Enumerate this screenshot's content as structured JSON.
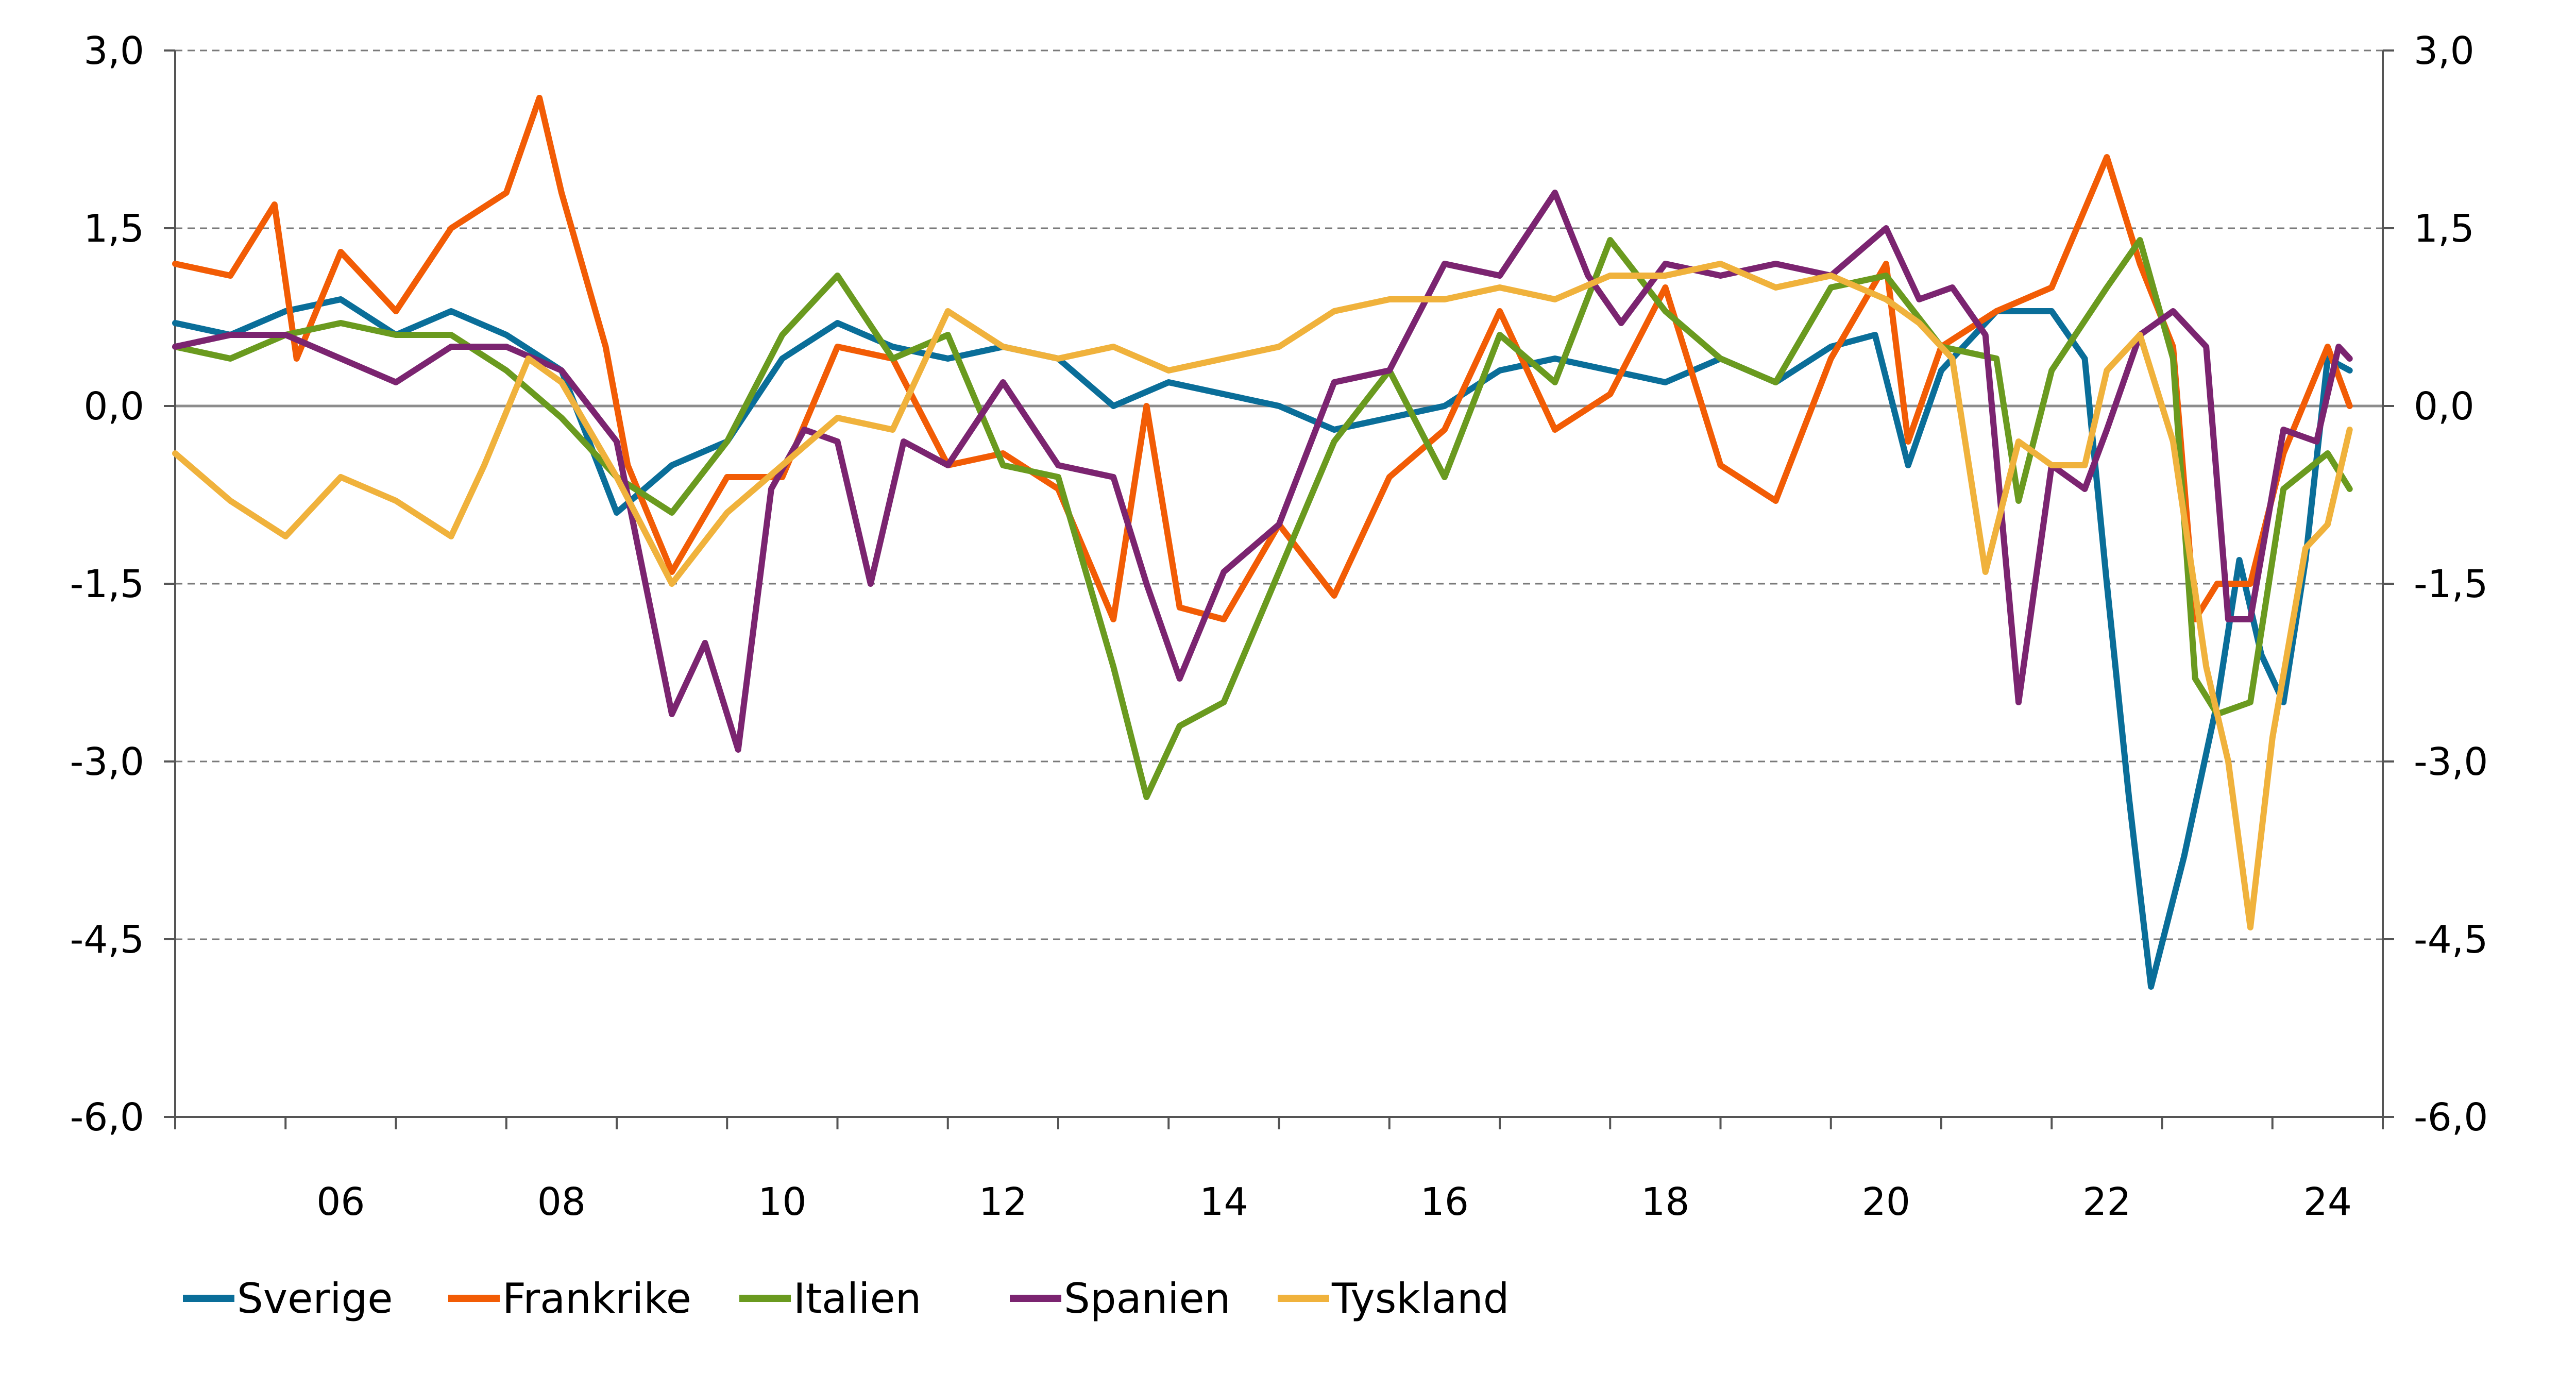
{
  "chart_data": {
    "type": "line",
    "title": "",
    "xlabel": "",
    "ylabel": "",
    "ylim": [
      -6.0,
      3.0
    ],
    "y_ticks": [
      "3,0",
      "1,5",
      "0,0",
      "-1,5",
      "-3,0",
      "-4,5",
      "-6,0"
    ],
    "y_tick_values": [
      3.0,
      1.5,
      0.0,
      -1.5,
      -3.0,
      -4.5,
      -6.0
    ],
    "xlim": [
      2004.5,
      2024.5
    ],
    "x_ticks": [
      "06",
      "08",
      "10",
      "12",
      "14",
      "16",
      "18",
      "20",
      "22",
      "24"
    ],
    "x_tick_values": [
      2006,
      2008,
      2010,
      2012,
      2014,
      2016,
      2018,
      2020,
      2022,
      2024
    ],
    "grid": "horizontal dashed",
    "dual_y_axis": true,
    "legend_position": "bottom-left",
    "series": [
      {
        "name": "Sverige",
        "color": "#0a6e99",
        "points": [
          [
            2004.5,
            0.7
          ],
          [
            2005.0,
            0.6
          ],
          [
            2005.5,
            0.8
          ],
          [
            2006.0,
            0.9
          ],
          [
            2006.5,
            0.6
          ],
          [
            2007.0,
            0.8
          ],
          [
            2007.5,
            0.6
          ],
          [
            2008.0,
            0.3
          ],
          [
            2008.5,
            -0.9
          ],
          [
            2009.0,
            -0.5
          ],
          [
            2009.5,
            -0.3
          ],
          [
            2010.0,
            0.4
          ],
          [
            2010.5,
            0.7
          ],
          [
            2011.0,
            0.5
          ],
          [
            2011.5,
            0.4
          ],
          [
            2012.0,
            0.5
          ],
          [
            2012.5,
            0.4
          ],
          [
            2013.0,
            0.0
          ],
          [
            2013.5,
            0.2
          ],
          [
            2014.0,
            0.1
          ],
          [
            2014.5,
            0.0
          ],
          [
            2015.0,
            -0.2
          ],
          [
            2015.5,
            -0.1
          ],
          [
            2016.0,
            0.0
          ],
          [
            2016.5,
            0.3
          ],
          [
            2017.0,
            0.4
          ],
          [
            2017.5,
            0.3
          ],
          [
            2018.0,
            0.2
          ],
          [
            2018.5,
            0.4
          ],
          [
            2019.0,
            0.2
          ],
          [
            2019.5,
            0.5
          ],
          [
            2019.9,
            0.6
          ],
          [
            2020.2,
            -0.5
          ],
          [
            2020.5,
            0.3
          ],
          [
            2021.0,
            0.8
          ],
          [
            2021.5,
            0.8
          ],
          [
            2021.8,
            0.4
          ],
          [
            2022.0,
            -1.5
          ],
          [
            2022.2,
            -3.3
          ],
          [
            2022.4,
            -4.9
          ],
          [
            2022.7,
            -3.8
          ],
          [
            2023.0,
            -2.5
          ],
          [
            2023.2,
            -1.3
          ],
          [
            2023.4,
            -2.1
          ],
          [
            2023.6,
            -2.5
          ],
          [
            2023.8,
            -1.3
          ],
          [
            2024.0,
            0.4
          ],
          [
            2024.2,
            0.3
          ]
        ]
      },
      {
        "name": "Frankrike",
        "color": "#f25c05",
        "points": [
          [
            2004.5,
            1.2
          ],
          [
            2005.0,
            1.1
          ],
          [
            2005.4,
            1.7
          ],
          [
            2005.6,
            0.4
          ],
          [
            2006.0,
            1.3
          ],
          [
            2006.5,
            0.8
          ],
          [
            2007.0,
            1.5
          ],
          [
            2007.5,
            1.8
          ],
          [
            2007.8,
            2.6
          ],
          [
            2008.0,
            1.8
          ],
          [
            2008.4,
            0.5
          ],
          [
            2008.6,
            -0.5
          ],
          [
            2009.0,
            -1.4
          ],
          [
            2009.5,
            -0.6
          ],
          [
            2010.0,
            -0.6
          ],
          [
            2010.5,
            0.5
          ],
          [
            2011.0,
            0.4
          ],
          [
            2011.5,
            -0.5
          ],
          [
            2012.0,
            -0.4
          ],
          [
            2012.5,
            -0.7
          ],
          [
            2013.0,
            -1.8
          ],
          [
            2013.3,
            0.0
          ],
          [
            2013.6,
            -1.7
          ],
          [
            2014.0,
            -1.8
          ],
          [
            2014.5,
            -1.0
          ],
          [
            2015.0,
            -1.6
          ],
          [
            2015.5,
            -0.6
          ],
          [
            2016.0,
            -0.2
          ],
          [
            2016.5,
            0.8
          ],
          [
            2017.0,
            -0.2
          ],
          [
            2017.5,
            0.1
          ],
          [
            2018.0,
            1.0
          ],
          [
            2018.5,
            -0.5
          ],
          [
            2019.0,
            -0.8
          ],
          [
            2019.5,
            0.4
          ],
          [
            2020.0,
            1.2
          ],
          [
            2020.2,
            -0.3
          ],
          [
            2020.5,
            0.5
          ],
          [
            2021.0,
            0.8
          ],
          [
            2021.5,
            1.0
          ],
          [
            2022.0,
            2.1
          ],
          [
            2022.3,
            1.2
          ],
          [
            2022.6,
            0.5
          ],
          [
            2022.8,
            -1.8
          ],
          [
            2023.0,
            -1.5
          ],
          [
            2023.3,
            -1.5
          ],
          [
            2023.6,
            -0.4
          ],
          [
            2024.0,
            0.5
          ],
          [
            2024.2,
            0.0
          ]
        ]
      },
      {
        "name": "Italien",
        "color": "#6a9a1f",
        "points": [
          [
            2004.5,
            0.5
          ],
          [
            2005.0,
            0.4
          ],
          [
            2005.5,
            0.6
          ],
          [
            2006.0,
            0.7
          ],
          [
            2006.5,
            0.6
          ],
          [
            2007.0,
            0.6
          ],
          [
            2007.5,
            0.3
          ],
          [
            2008.0,
            -0.1
          ],
          [
            2008.5,
            -0.6
          ],
          [
            2009.0,
            -0.9
          ],
          [
            2009.5,
            -0.3
          ],
          [
            2010.0,
            0.6
          ],
          [
            2010.5,
            1.1
          ],
          [
            2011.0,
            0.4
          ],
          [
            2011.5,
            0.6
          ],
          [
            2012.0,
            -0.5
          ],
          [
            2012.5,
            -0.6
          ],
          [
            2013.0,
            -2.2
          ],
          [
            2013.3,
            -3.3
          ],
          [
            2013.6,
            -2.7
          ],
          [
            2014.0,
            -2.5
          ],
          [
            2014.5,
            -1.4
          ],
          [
            2015.0,
            -0.3
          ],
          [
            2015.5,
            0.3
          ],
          [
            2016.0,
            -0.6
          ],
          [
            2016.5,
            0.6
          ],
          [
            2017.0,
            0.2
          ],
          [
            2017.5,
            1.4
          ],
          [
            2018.0,
            0.8
          ],
          [
            2018.5,
            0.4
          ],
          [
            2019.0,
            0.2
          ],
          [
            2019.5,
            1.0
          ],
          [
            2020.0,
            1.1
          ],
          [
            2020.5,
            0.5
          ],
          [
            2021.0,
            0.4
          ],
          [
            2021.2,
            -0.8
          ],
          [
            2021.5,
            0.3
          ],
          [
            2022.0,
            1.0
          ],
          [
            2022.3,
            1.4
          ],
          [
            2022.6,
            0.4
          ],
          [
            2022.8,
            -2.3
          ],
          [
            2023.0,
            -2.6
          ],
          [
            2023.3,
            -2.5
          ],
          [
            2023.6,
            -0.7
          ],
          [
            2024.0,
            -0.4
          ],
          [
            2024.2,
            -0.7
          ]
        ]
      },
      {
        "name": "Spanien",
        "color": "#7b2470",
        "points": [
          [
            2004.5,
            0.5
          ],
          [
            2005.0,
            0.6
          ],
          [
            2005.5,
            0.6
          ],
          [
            2006.0,
            0.4
          ],
          [
            2006.5,
            0.2
          ],
          [
            2007.0,
            0.5
          ],
          [
            2007.5,
            0.5
          ],
          [
            2008.0,
            0.3
          ],
          [
            2008.5,
            -0.3
          ],
          [
            2009.0,
            -2.6
          ],
          [
            2009.3,
            -2.0
          ],
          [
            2009.6,
            -2.9
          ],
          [
            2009.9,
            -0.7
          ],
          [
            2010.2,
            -0.2
          ],
          [
            2010.5,
            -0.3
          ],
          [
            2010.8,
            -1.5
          ],
          [
            2011.1,
            -0.3
          ],
          [
            2011.5,
            -0.5
          ],
          [
            2012.0,
            0.2
          ],
          [
            2012.5,
            -0.5
          ],
          [
            2013.0,
            -0.6
          ],
          [
            2013.3,
            -1.5
          ],
          [
            2013.6,
            -2.3
          ],
          [
            2014.0,
            -1.4
          ],
          [
            2014.5,
            -1.0
          ],
          [
            2015.0,
            0.2
          ],
          [
            2015.5,
            0.3
          ],
          [
            2016.0,
            1.2
          ],
          [
            2016.5,
            1.1
          ],
          [
            2017.0,
            1.8
          ],
          [
            2017.3,
            1.1
          ],
          [
            2017.6,
            0.7
          ],
          [
            2018.0,
            1.2
          ],
          [
            2018.5,
            1.1
          ],
          [
            2019.0,
            1.2
          ],
          [
            2019.5,
            1.1
          ],
          [
            2020.0,
            1.5
          ],
          [
            2020.3,
            0.9
          ],
          [
            2020.6,
            1.0
          ],
          [
            2020.9,
            0.6
          ],
          [
            2021.2,
            -2.5
          ],
          [
            2021.5,
            -0.5
          ],
          [
            2021.8,
            -0.7
          ],
          [
            2022.0,
            -0.2
          ],
          [
            2022.3,
            0.6
          ],
          [
            2022.6,
            0.8
          ],
          [
            2022.9,
            0.5
          ],
          [
            2023.1,
            -1.8
          ],
          [
            2023.3,
            -1.8
          ],
          [
            2023.6,
            -0.2
          ],
          [
            2023.9,
            -0.3
          ],
          [
            2024.1,
            0.5
          ],
          [
            2024.2,
            0.4
          ]
        ]
      },
      {
        "name": "Tyskland",
        "color": "#f0b23c",
        "points": [
          [
            2004.5,
            -0.4
          ],
          [
            2005.0,
            -0.8
          ],
          [
            2005.5,
            -1.1
          ],
          [
            2006.0,
            -0.6
          ],
          [
            2006.5,
            -0.8
          ],
          [
            2007.0,
            -1.1
          ],
          [
            2007.3,
            -0.5
          ],
          [
            2007.7,
            0.4
          ],
          [
            2008.0,
            0.2
          ],
          [
            2008.5,
            -0.6
          ],
          [
            2009.0,
            -1.5
          ],
          [
            2009.5,
            -0.9
          ],
          [
            2010.0,
            -0.5
          ],
          [
            2010.5,
            -0.1
          ],
          [
            2011.0,
            -0.2
          ],
          [
            2011.5,
            0.8
          ],
          [
            2012.0,
            0.5
          ],
          [
            2012.5,
            0.4
          ],
          [
            2013.0,
            0.5
          ],
          [
            2013.5,
            0.3
          ],
          [
            2014.0,
            0.4
          ],
          [
            2014.5,
            0.5
          ],
          [
            2015.0,
            0.8
          ],
          [
            2015.5,
            0.9
          ],
          [
            2016.0,
            0.9
          ],
          [
            2016.5,
            1.0
          ],
          [
            2017.0,
            0.9
          ],
          [
            2017.5,
            1.1
          ],
          [
            2018.0,
            1.1
          ],
          [
            2018.5,
            1.2
          ],
          [
            2019.0,
            1.0
          ],
          [
            2019.5,
            1.1
          ],
          [
            2020.0,
            0.9
          ],
          [
            2020.3,
            0.7
          ],
          [
            2020.6,
            0.4
          ],
          [
            2020.9,
            -1.4
          ],
          [
            2021.2,
            -0.3
          ],
          [
            2021.5,
            -0.5
          ],
          [
            2021.8,
            -0.5
          ],
          [
            2022.0,
            0.3
          ],
          [
            2022.3,
            0.6
          ],
          [
            2022.6,
            -0.3
          ],
          [
            2022.9,
            -2.2
          ],
          [
            2023.1,
            -3.0
          ],
          [
            2023.3,
            -4.4
          ],
          [
            2023.5,
            -2.8
          ],
          [
            2023.8,
            -1.2
          ],
          [
            2024.0,
            -1.0
          ],
          [
            2024.2,
            -0.2
          ]
        ]
      }
    ]
  }
}
